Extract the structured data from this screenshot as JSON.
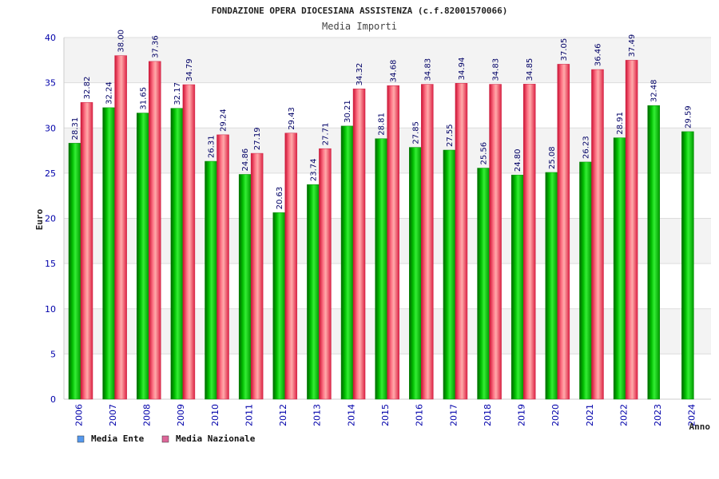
{
  "chart_data": {
    "type": "bar",
    "title": "FONDAZIONE OPERA DIOCESIANA ASSISTENZA (c.f.82001570066)",
    "subtitle": "Media Importi",
    "ylabel": "Euro",
    "xlabel": "Anno",
    "ylim": [
      0,
      40
    ],
    "yticks": [
      0,
      5,
      10,
      15,
      20,
      25,
      30,
      35,
      40
    ],
    "categories": [
      "2006",
      "2007",
      "2008",
      "2009",
      "2010",
      "2011",
      "2012",
      "2013",
      "2014",
      "2015",
      "2016",
      "2017",
      "2018",
      "2019",
      "2020",
      "2021",
      "2022",
      "2023",
      "2024"
    ],
    "series": [
      {
        "name": "Media Ente",
        "color": "#00aa00",
        "legend_color": "#5599ee",
        "values": [
          28.31,
          32.24,
          31.65,
          32.17,
          26.31,
          24.86,
          20.63,
          23.74,
          30.21,
          28.81,
          27.85,
          27.55,
          25.56,
          24.8,
          25.08,
          26.23,
          28.91,
          32.48,
          29.59
        ],
        "labels": [
          "28.31",
          "32.24",
          "31.65",
          "32.17",
          "26.31",
          "24.86",
          "20.63",
          "23.74",
          "30.21",
          "28.81",
          "27.85",
          "27.55",
          "25.56",
          "24.80",
          "25.08",
          "26.23",
          "28.91",
          "32.48",
          "29.59"
        ]
      },
      {
        "name": "Media Nazionale",
        "color": "#ee2244",
        "legend_color": "#dd6699",
        "values": [
          32.82,
          38.0,
          37.36,
          34.79,
          29.24,
          27.19,
          29.43,
          27.71,
          34.32,
          34.68,
          34.83,
          34.94,
          34.83,
          34.85,
          37.05,
          36.46,
          37.49,
          null,
          null
        ],
        "labels": [
          "32.82",
          "38.00",
          "37.36",
          "34.79",
          "29.24",
          "27.19",
          "29.43",
          "27.71",
          "34.32",
          "34.68",
          "34.83",
          "34.94",
          "34.83",
          "34.85",
          "37.05",
          "36.46",
          "37.49",
          null,
          null
        ]
      }
    ],
    "legend_position": "bottom-left",
    "grid": true
  }
}
